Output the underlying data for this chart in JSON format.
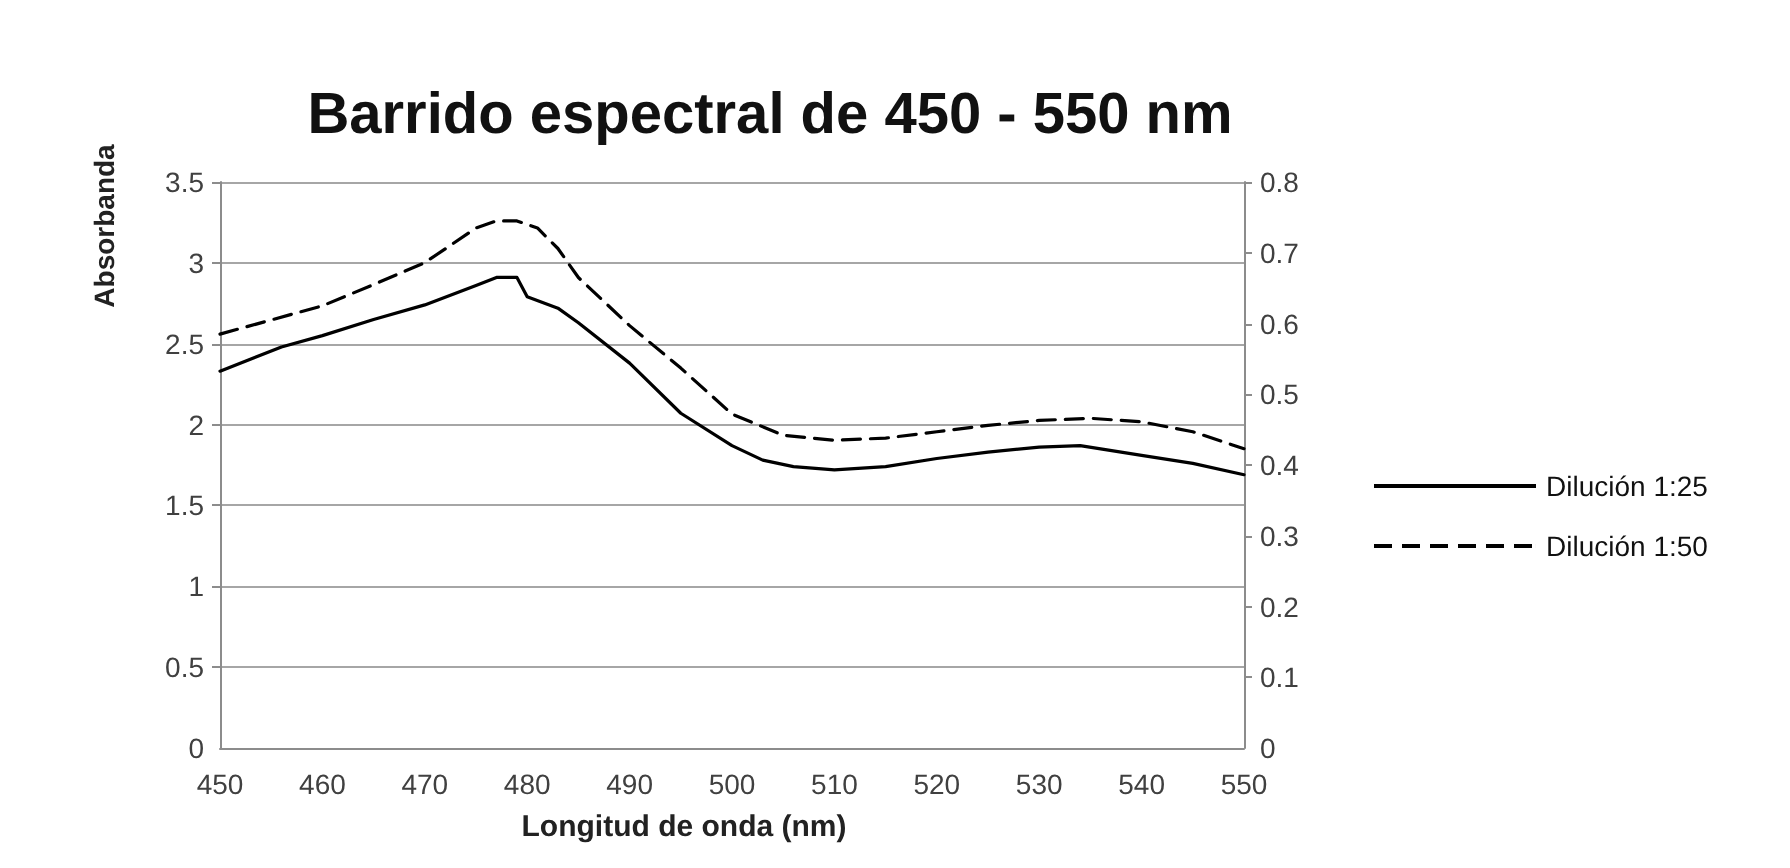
{
  "chart_data": {
    "type": "line",
    "title": "Barrido espectral de 450 - 550 nm",
    "xlabel": "Longitud de onda (nm)",
    "ylabel": "Absorbanda",
    "xlim": [
      450,
      550
    ],
    "xticks": [
      450,
      460,
      470,
      480,
      490,
      500,
      510,
      520,
      530,
      540,
      550
    ],
    "ylim": [
      0,
      3.5
    ],
    "yticks": [
      0,
      0.5,
      1,
      1.5,
      2,
      2.5,
      3,
      3.5
    ],
    "y2lim": [
      0,
      0.8
    ],
    "y2ticks": [
      0,
      0.1,
      0.2,
      0.3,
      0.4,
      0.5,
      0.6,
      0.7,
      0.8
    ],
    "grid": "y",
    "legend": "right",
    "marker": "none",
    "series": [
      {
        "name": "Dilución 1:25",
        "color": "#000000",
        "line_style": "solid",
        "x": [
          450,
          456,
          460,
          465,
          470,
          475,
          477,
          479,
          480,
          483,
          485,
          490,
          495,
          500,
          503,
          506,
          510,
          515,
          520,
          525,
          530,
          534,
          540,
          545,
          550
        ],
        "values": [
          2.33,
          2.48,
          2.55,
          2.65,
          2.74,
          2.86,
          2.91,
          2.91,
          2.79,
          2.72,
          2.63,
          2.38,
          2.07,
          1.87,
          1.78,
          1.74,
          1.72,
          1.74,
          1.79,
          1.83,
          1.86,
          1.87,
          1.81,
          1.76,
          1.69
        ]
      },
      {
        "name": "Dilución 1:50",
        "color": "#000000",
        "line_style": "dashed",
        "axis": "y2",
        "x": [
          450,
          455,
          460,
          465,
          470,
          475,
          477,
          479,
          481,
          483,
          485,
          490,
          495,
          500,
          505,
          510,
          515,
          520,
          525,
          530,
          535,
          540,
          545,
          550
        ],
        "values": [
          0.585,
          0.605,
          0.625,
          0.655,
          0.686,
          0.735,
          0.745,
          0.745,
          0.735,
          0.706,
          0.665,
          0.597,
          0.537,
          0.472,
          0.442,
          0.435,
          0.438,
          0.447,
          0.456,
          0.463,
          0.466,
          0.461,
          0.447,
          0.423
        ]
      }
    ]
  }
}
